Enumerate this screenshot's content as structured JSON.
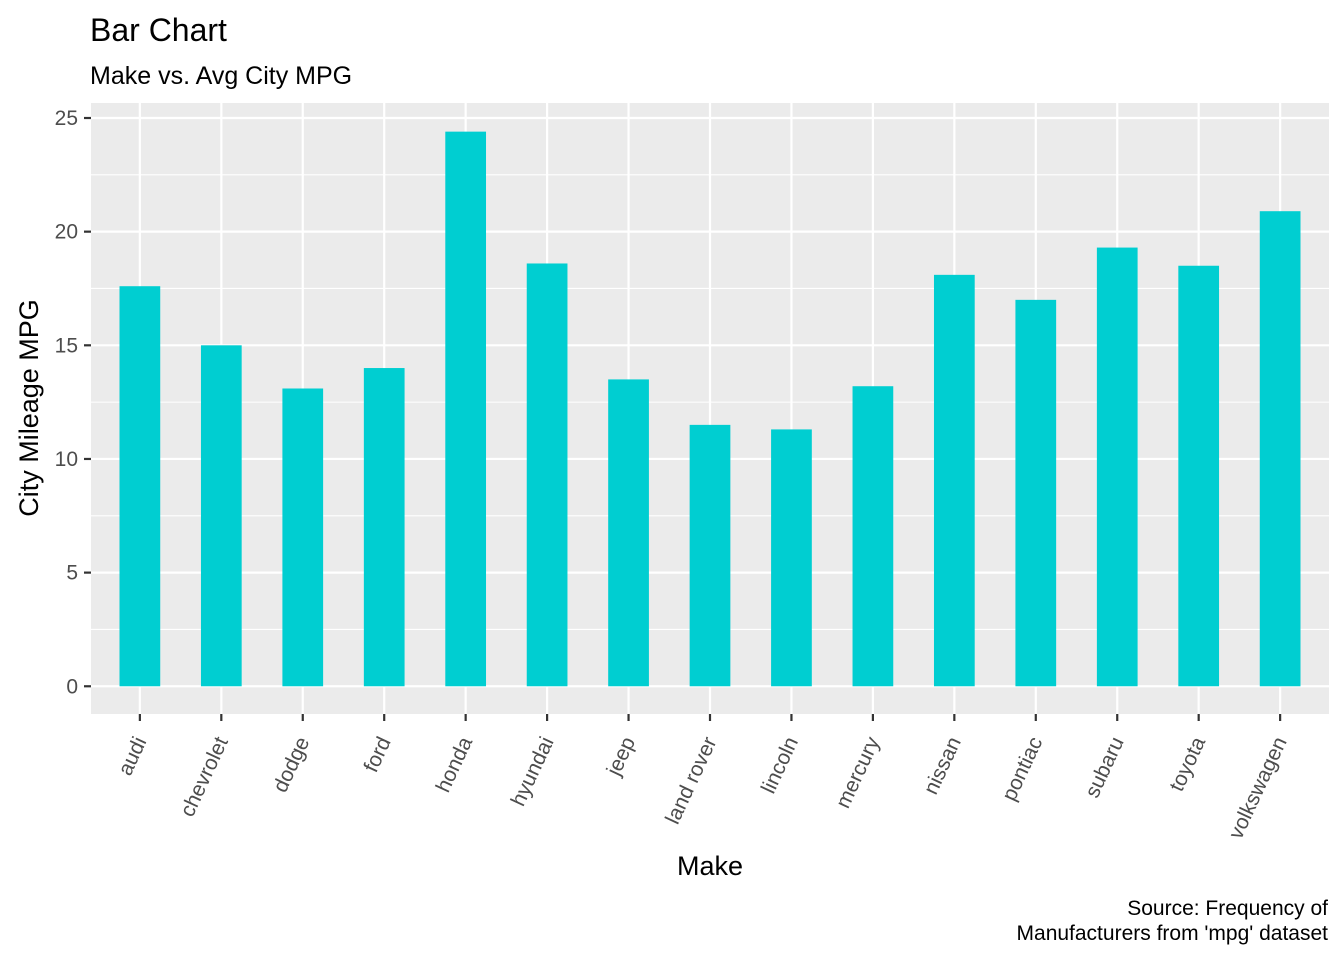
{
  "chart_data": {
    "type": "bar",
    "title": "Bar Chart",
    "subtitle": "Make vs. Avg City MPG",
    "xlabel": "Make",
    "ylabel": "City Mileage MPG",
    "caption": [
      "Source: Frequency of",
      "Manufacturers from 'mpg' dataset"
    ],
    "categories": [
      "audi",
      "chevrolet",
      "dodge",
      "ford",
      "honda",
      "hyundai",
      "jeep",
      "land rover",
      "lincoln",
      "mercury",
      "nissan",
      "pontiac",
      "subaru",
      "toyota",
      "volkswagen"
    ],
    "values": [
      17.6,
      15.0,
      13.1,
      14.0,
      24.4,
      18.6,
      13.5,
      11.5,
      11.3,
      13.2,
      18.1,
      17.0,
      19.3,
      18.5,
      20.9
    ],
    "y_ticks": [
      0,
      5,
      10,
      15,
      20,
      25
    ],
    "ylim": [
      -1.22,
      25.66
    ],
    "grid": true,
    "bar_color": "#00CED1",
    "panel_background": "#EBEBEB",
    "grid_color": "#FFFFFF"
  }
}
